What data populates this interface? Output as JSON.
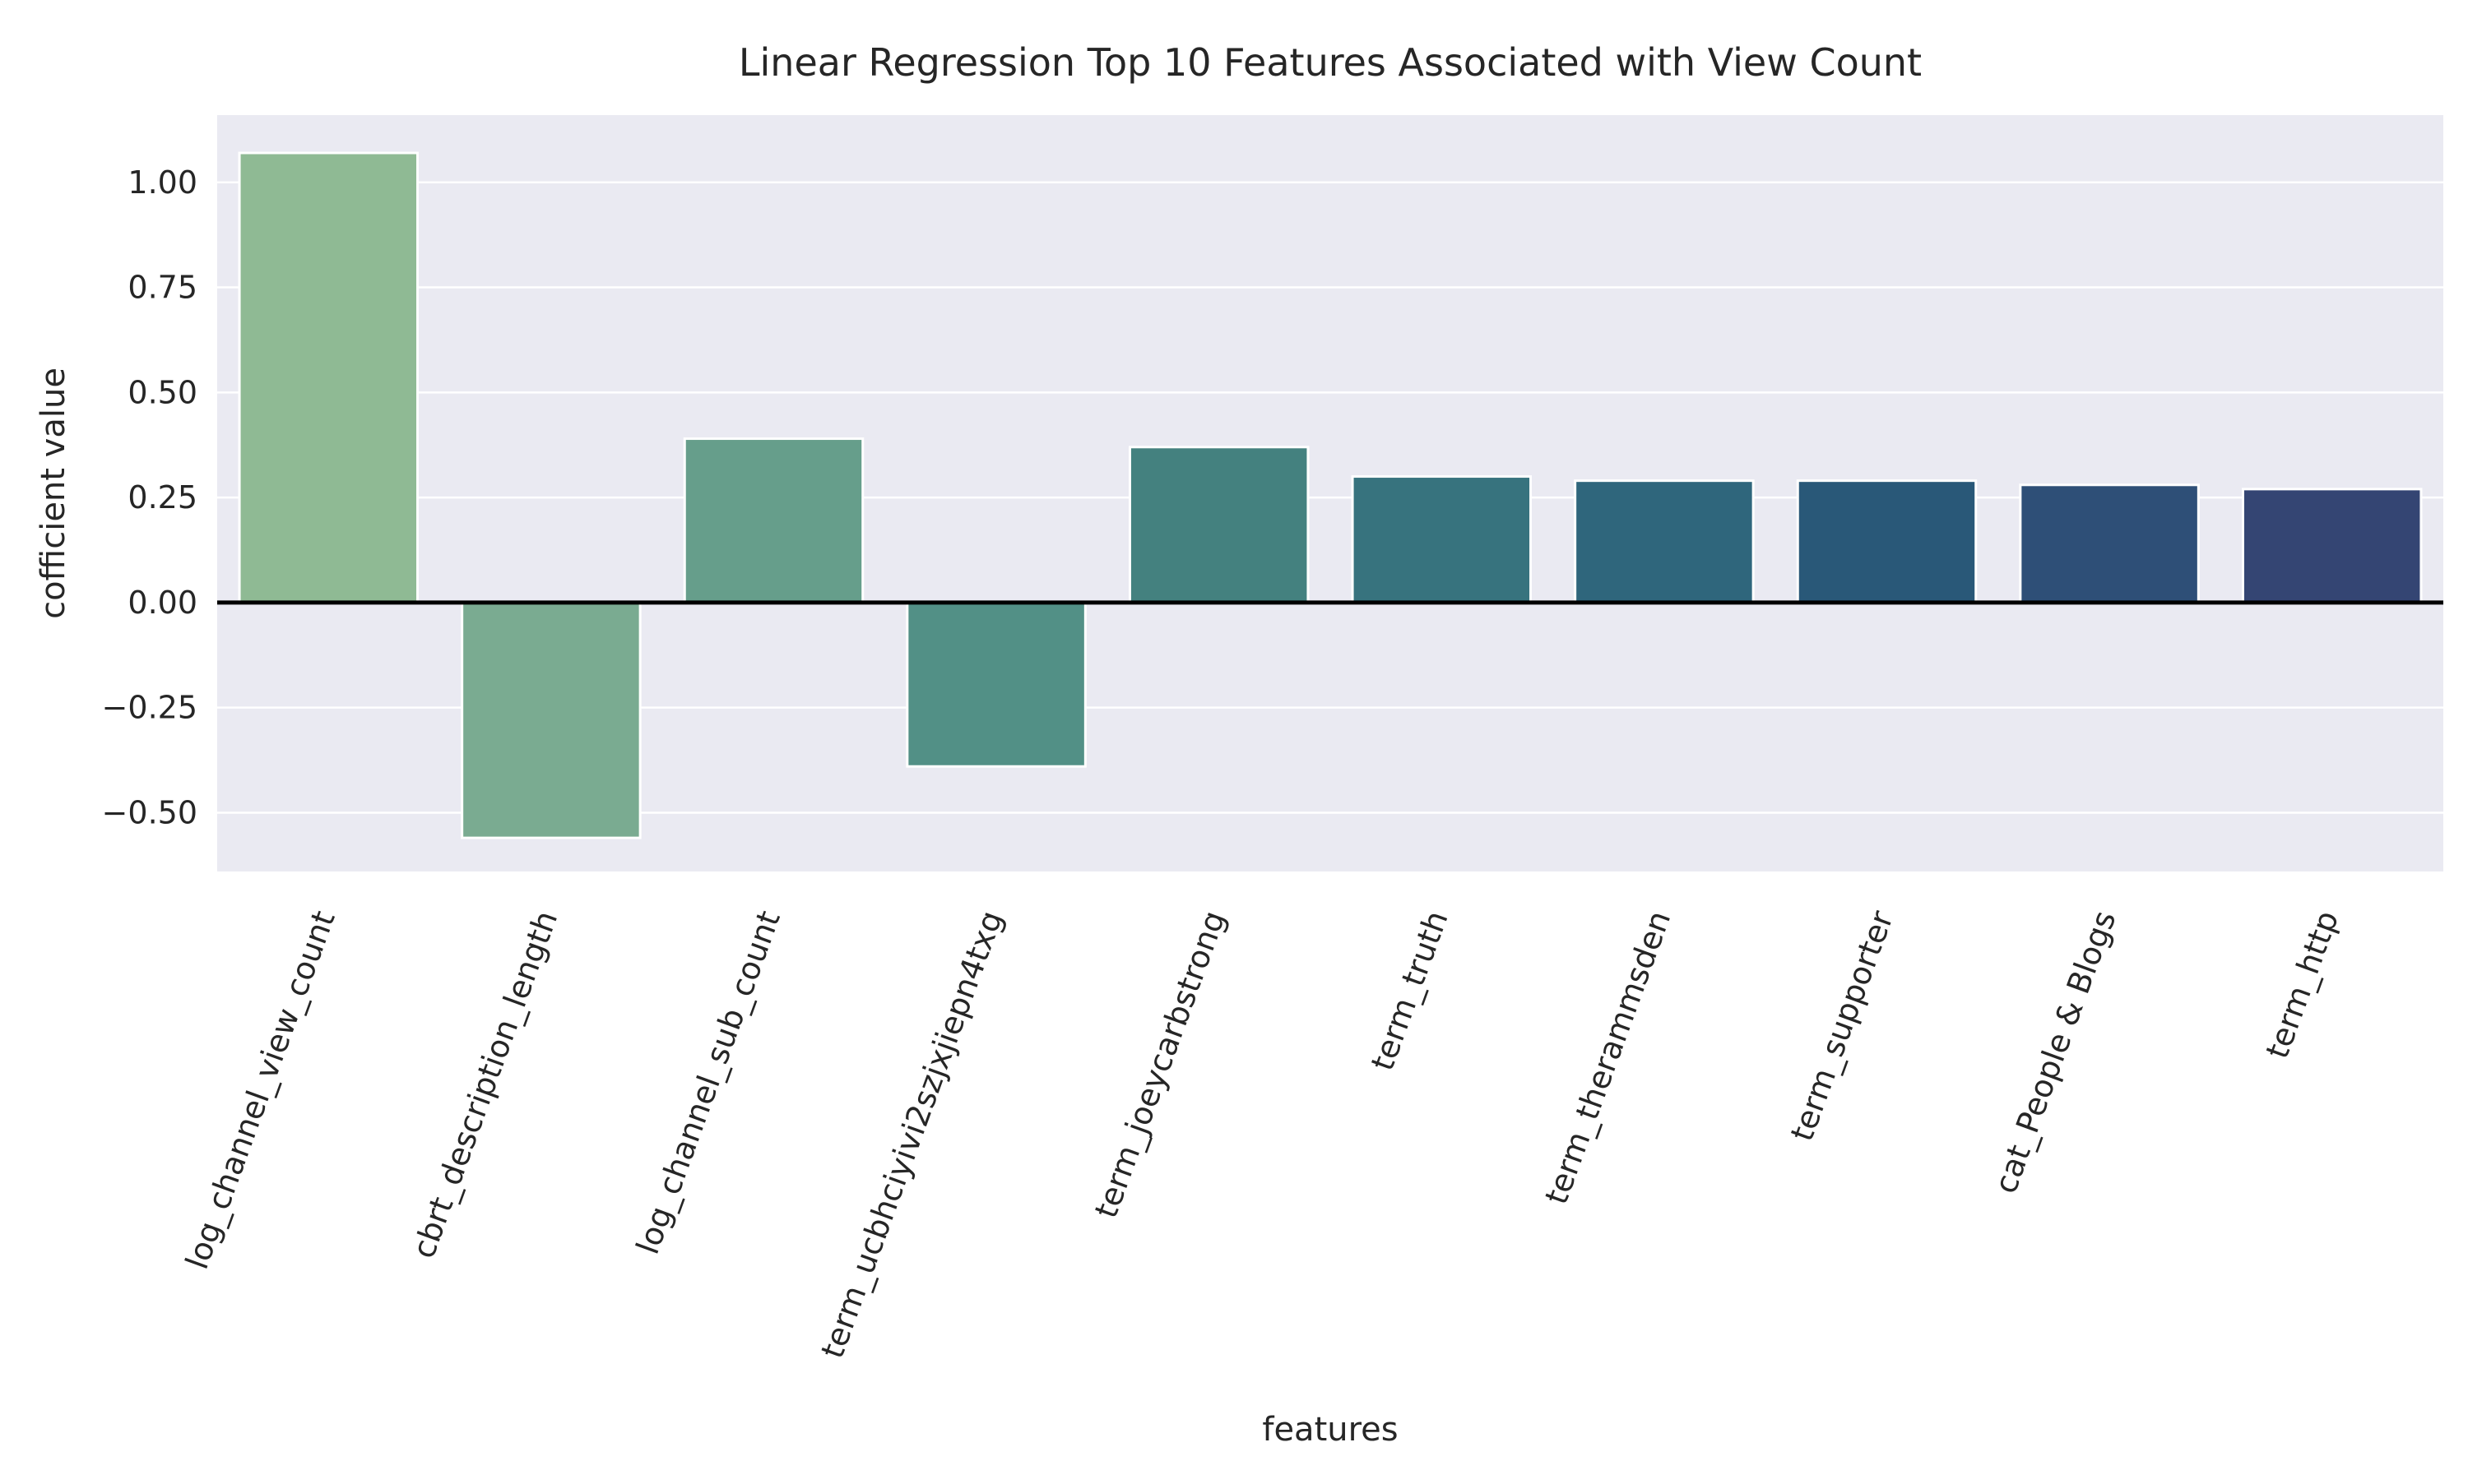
{
  "chart_data": {
    "type": "bar",
    "title": "Linear Regression Top 10 Features Associated with View Count",
    "xlabel": "features",
    "ylabel": "cofficient value",
    "categories": [
      "log_channel_view_count",
      "cbrt_description_length",
      "log_channel_sub_count",
      "term_ucbhciyivi2szjxjiepn4txg",
      "term_joeycarbstrong",
      "term_truth",
      "term_therammsden",
      "term_supporter",
      "cat_People & Blogs",
      "term_http"
    ],
    "values": [
      1.07,
      -0.56,
      0.39,
      -0.39,
      0.37,
      0.3,
      0.29,
      0.29,
      0.28,
      0.27
    ],
    "bar_colors": [
      "#8fba94",
      "#7aab91",
      "#669e8b",
      "#529086",
      "#44817f",
      "#37737e",
      "#2f667c",
      "#295878",
      "#2e4f77",
      "#344573"
    ],
    "ylim": [
      -0.64,
      1.16
    ],
    "yticks": [
      -0.5,
      -0.25,
      0.0,
      0.25,
      0.5,
      0.75,
      1.0
    ],
    "ytick_labels": [
      "−0.50",
      "−0.25",
      "0.00",
      "0.25",
      "0.50",
      "0.75",
      "1.00"
    ],
    "grid": true,
    "zero_line": true,
    "colors": {
      "plot_background": "#eaeaf2",
      "grid": "#ffffff",
      "zero_line": "#000000",
      "text": "#262626"
    }
  }
}
